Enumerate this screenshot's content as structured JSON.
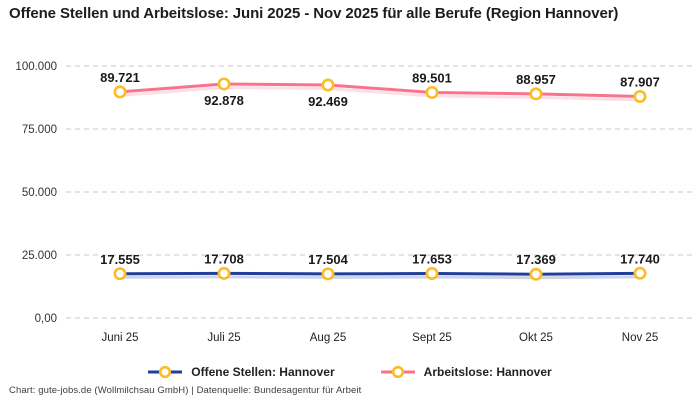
{
  "title": "Offene Stellen und Arbeitslose: Juni 2025 - Nov 2025 für alle Berufe (Region Hannover)",
  "footer": "Chart: gute-jobs.de (Wollmilchsau GmbH) | Datenquelle: Bundesagentur für Arbeit",
  "colors": {
    "series_open_positions": "#203e9a",
    "series_unemployed": "#f8738c",
    "marker_ring": "#fbbd23",
    "marker_fill": "#ffffff",
    "gridline": "#c9c9c9",
    "axis_text": "#333333",
    "data_label": "#1a1a1a"
  },
  "chart_data": {
    "type": "line",
    "categories": [
      "Juni 25",
      "Juli 25",
      "Aug 25",
      "Sept 25",
      "Okt 25",
      "Nov 25"
    ],
    "series": [
      {
        "name": "Offene Stellen: Hannover",
        "color": "#203e9a",
        "values": [
          17555,
          17708,
          17504,
          17653,
          17369,
          17740
        ],
        "labels": [
          "17.555",
          "17.708",
          "17.504",
          "17.653",
          "17.369",
          "17.740"
        ],
        "label_pos": [
          "above",
          "above",
          "above",
          "above",
          "above",
          "above"
        ]
      },
      {
        "name": "Arbeitslose: Hannover",
        "color": "#f8738c",
        "values": [
          89721,
          92878,
          92469,
          89501,
          88957,
          87907
        ],
        "labels": [
          "89.721",
          "92.878",
          "92.469",
          "89.501",
          "88.957",
          "87.907"
        ],
        "label_pos": [
          "above",
          "below",
          "below",
          "above",
          "above",
          "above"
        ]
      }
    ],
    "y_ticks": [
      {
        "value": 0,
        "label": "0,00"
      },
      {
        "value": 25000,
        "label": "25.000"
      },
      {
        "value": 50000,
        "label": "50.000"
      },
      {
        "value": 75000,
        "label": "75.000"
      },
      {
        "value": 100000,
        "label": "100.000"
      }
    ],
    "ylim": [
      0,
      100000
    ],
    "grid": "horizontal-dashed",
    "legend_position": "bottom",
    "title": "Offene Stellen und Arbeitslose: Juni 2025 - Nov 2025 für alle Berufe (Region Hannover)"
  }
}
